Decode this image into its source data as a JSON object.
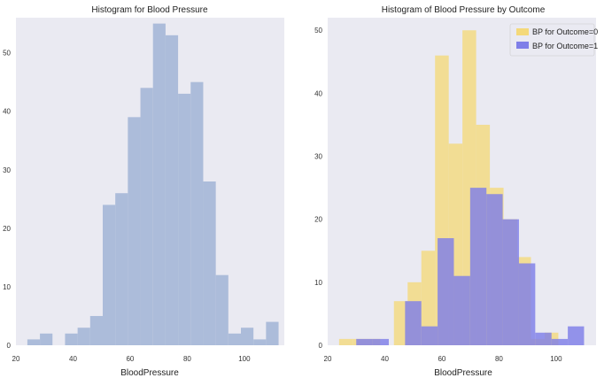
{
  "chart_data": [
    {
      "type": "bar",
      "title": "Histogram for Blood Pressure",
      "xlabel": "BloodPressure",
      "ylabel": "",
      "xlim": [
        20,
        114
      ],
      "ylim": [
        0,
        56
      ],
      "xticks": [
        20,
        40,
        60,
        80,
        100
      ],
      "yticks": [
        0,
        10,
        20,
        30,
        40,
        50
      ],
      "grid": false,
      "background": "#eaeaf2",
      "bin_edges": [
        24,
        28.4,
        32.8,
        37.2,
        41.6,
        46,
        50.4,
        54.8,
        59.2,
        63.6,
        68,
        72.4,
        76.8,
        81.2,
        85.6,
        90,
        94.4,
        98.8,
        103.2,
        107.6,
        112
      ],
      "series": [
        {
          "color": "#a9b9d8",
          "values": [
            1,
            2,
            0,
            2,
            3,
            5,
            24,
            26,
            39,
            44,
            55,
            53,
            43,
            45,
            28,
            12,
            2,
            3,
            1,
            4
          ]
        }
      ]
    },
    {
      "type": "bar",
      "title": "Histogram of Blood Pressure by Outcome",
      "xlabel": "BloodPressure",
      "ylabel": "",
      "xlim": [
        20,
        114
      ],
      "ylim": [
        0,
        52
      ],
      "xticks": [
        20,
        40,
        60,
        80,
        100
      ],
      "yticks": [
        0,
        10,
        20,
        30,
        40,
        50
      ],
      "grid": false,
      "background": "#eaeaf2",
      "legend": "top-right",
      "series": [
        {
          "name": "BP for Outcome=0",
          "color": "#f4d97a",
          "bin_edges": [
            24,
            28.8,
            33.6,
            38.4,
            43.2,
            48,
            52.8,
            57.6,
            62.4,
            67.2,
            72,
            76.8,
            81.6,
            86.4,
            91.2,
            96,
            100.8,
            105.6,
            110.4
          ],
          "values": [
            1,
            1,
            1,
            0,
            7,
            10,
            15,
            46,
            32,
            50,
            35,
            25,
            20,
            14,
            1,
            2,
            0,
            0
          ]
        },
        {
          "name": "BP for Outcome=1",
          "color": "#7f7fe8",
          "bin_edges": [
            30,
            35.7,
            41.4,
            47.1,
            52.8,
            58.5,
            64.2,
            69.9,
            75.6,
            81.3,
            87,
            92.7,
            98.4,
            104.1,
            109.8
          ],
          "values": [
            1,
            1,
            0,
            7,
            3,
            17,
            11,
            25,
            24,
            20,
            13,
            2,
            1,
            3
          ]
        }
      ]
    }
  ]
}
